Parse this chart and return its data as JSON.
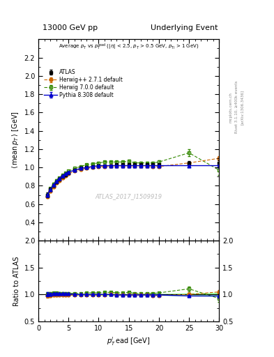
{
  "title_left": "13000 GeV pp",
  "title_right": "Underlying Event",
  "watermark": "ATLAS_2017_I1509919",
  "ylim_main": [
    0.2,
    2.4
  ],
  "ylim_ratio": [
    0.5,
    2.0
  ],
  "xlim": [
    0,
    30
  ],
  "yticks_main": [
    0.4,
    0.6,
    0.8,
    1.0,
    1.2,
    1.4,
    1.6,
    1.8,
    2.0,
    2.2
  ],
  "yticks_ratio": [
    0.5,
    1.0,
    1.5,
    2.0
  ],
  "xticks": [
    0,
    5,
    10,
    15,
    20,
    25,
    30
  ],
  "atlas_x": [
    1.5,
    2.0,
    2.5,
    3.0,
    3.5,
    4.0,
    4.5,
    5.0,
    6.0,
    7.0,
    8.0,
    9.0,
    10.0,
    11.0,
    12.0,
    13.0,
    14.0,
    15.0,
    16.0,
    17.0,
    18.0,
    19.0,
    20.0,
    25.0,
    30.0
  ],
  "atlas_y": [
    0.7,
    0.76,
    0.8,
    0.84,
    0.87,
    0.9,
    0.92,
    0.94,
    0.97,
    0.99,
    1.0,
    1.01,
    1.02,
    1.02,
    1.02,
    1.03,
    1.03,
    1.03,
    1.03,
    1.03,
    1.03,
    1.03,
    1.03,
    1.05,
    1.05
  ],
  "atlas_yerr": [
    0.025,
    0.018,
    0.014,
    0.012,
    0.011,
    0.01,
    0.01,
    0.009,
    0.009,
    0.009,
    0.009,
    0.009,
    0.009,
    0.009,
    0.009,
    0.009,
    0.009,
    0.009,
    0.009,
    0.009,
    0.009,
    0.009,
    0.009,
    0.02,
    0.03
  ],
  "herwig271_x": [
    1.5,
    2.0,
    2.5,
    3.0,
    3.5,
    4.0,
    4.5,
    5.0,
    6.0,
    7.0,
    8.0,
    9.0,
    10.0,
    11.0,
    12.0,
    13.0,
    14.0,
    15.0,
    16.0,
    17.0,
    18.0,
    19.0,
    20.0,
    25.0,
    30.0
  ],
  "herwig271_y": [
    0.68,
    0.74,
    0.79,
    0.83,
    0.86,
    0.89,
    0.91,
    0.93,
    0.96,
    0.98,
    0.99,
    1.0,
    1.01,
    1.01,
    1.02,
    1.02,
    1.02,
    1.02,
    1.02,
    1.02,
    1.02,
    1.01,
    1.01,
    1.05,
    1.1
  ],
  "herwig271_yerr": [
    0.01,
    0.01,
    0.008,
    0.008,
    0.007,
    0.006,
    0.006,
    0.005,
    0.005,
    0.005,
    0.004,
    0.004,
    0.004,
    0.004,
    0.004,
    0.004,
    0.004,
    0.004,
    0.004,
    0.004,
    0.004,
    0.004,
    0.004,
    0.015,
    0.025
  ],
  "herwig700_x": [
    1.5,
    2.0,
    2.5,
    3.0,
    3.5,
    4.0,
    4.5,
    5.0,
    6.0,
    7.0,
    8.0,
    9.0,
    10.0,
    11.0,
    12.0,
    13.0,
    14.0,
    15.0,
    16.0,
    17.0,
    18.0,
    19.0,
    20.0,
    25.0,
    30.0
  ],
  "herwig700_y": [
    0.7,
    0.77,
    0.82,
    0.86,
    0.89,
    0.92,
    0.94,
    0.96,
    0.99,
    1.01,
    1.03,
    1.04,
    1.05,
    1.06,
    1.06,
    1.06,
    1.06,
    1.07,
    1.05,
    1.05,
    1.05,
    1.05,
    1.06,
    1.16,
    0.97
  ],
  "herwig700_yerr": [
    0.018,
    0.014,
    0.011,
    0.009,
    0.008,
    0.008,
    0.007,
    0.007,
    0.007,
    0.007,
    0.008,
    0.009,
    0.012,
    0.013,
    0.013,
    0.013,
    0.013,
    0.014,
    0.013,
    0.013,
    0.013,
    0.013,
    0.014,
    0.04,
    0.055
  ],
  "pythia_x": [
    1.5,
    2.0,
    2.5,
    3.0,
    3.5,
    4.0,
    4.5,
    5.0,
    6.0,
    7.0,
    8.0,
    9.0,
    10.0,
    11.0,
    12.0,
    13.0,
    14.0,
    15.0,
    16.0,
    17.0,
    18.0,
    19.0,
    20.0,
    25.0,
    30.0
  ],
  "pythia_y": [
    0.7,
    0.76,
    0.81,
    0.85,
    0.88,
    0.91,
    0.93,
    0.95,
    0.97,
    0.99,
    1.0,
    1.01,
    1.02,
    1.02,
    1.02,
    1.02,
    1.02,
    1.02,
    1.02,
    1.02,
    1.02,
    1.02,
    1.02,
    1.02,
    1.02
  ],
  "pythia_yerr": [
    0.009,
    0.008,
    0.007,
    0.006,
    0.006,
    0.005,
    0.004,
    0.004,
    0.004,
    0.003,
    0.003,
    0.003,
    0.003,
    0.003,
    0.003,
    0.003,
    0.003,
    0.003,
    0.003,
    0.003,
    0.003,
    0.003,
    0.003,
    0.006,
    0.01
  ],
  "atlas_color": "#000000",
  "herwig271_color": "#cc6600",
  "herwig700_color": "#338800",
  "pythia_color": "#0000cc",
  "ratio_band_color": "#99ff99"
}
